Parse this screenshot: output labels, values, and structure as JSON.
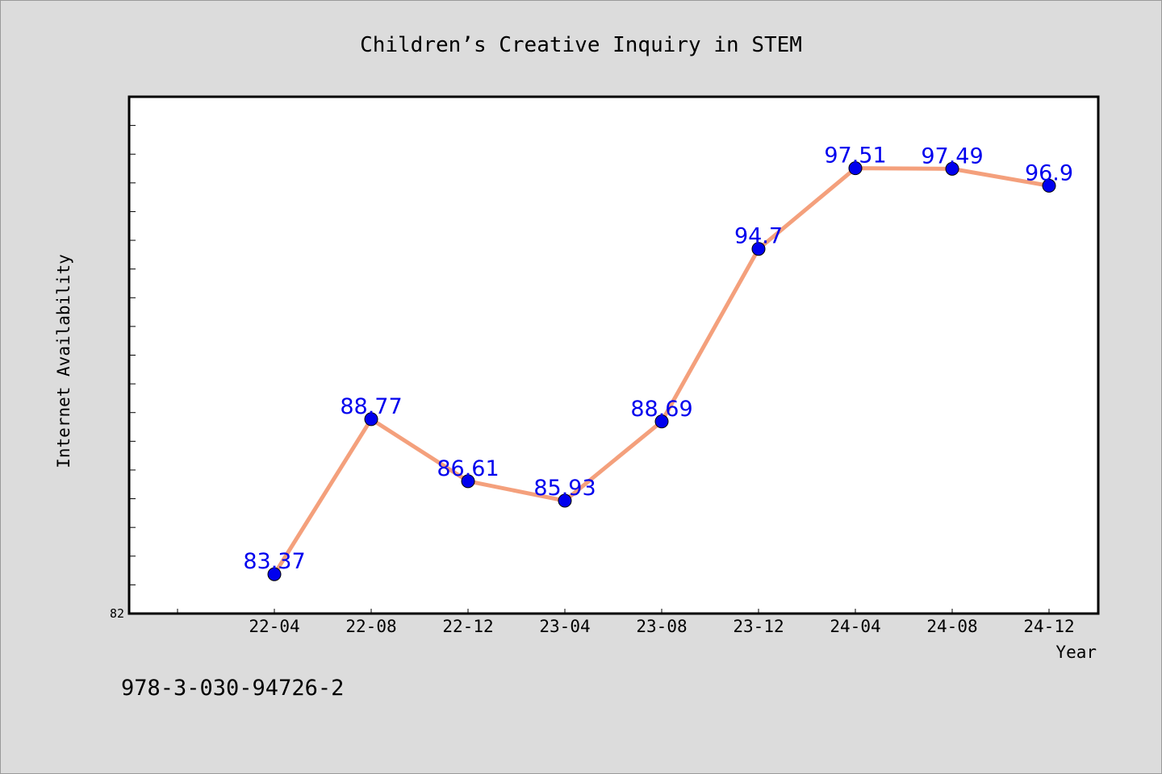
{
  "chart_data": {
    "type": "line",
    "title": "Children’s Creative Inquiry in STEM",
    "xlabel": "Year",
    "ylabel": "Internet Availability",
    "categories": [
      "22-04",
      "22-08",
      "22-12",
      "23-04",
      "23-08",
      "23-12",
      "24-04",
      "24-08",
      "24-12"
    ],
    "series": [
      {
        "values": [
          83.37,
          88.77,
          86.61,
          85.93,
          88.69,
          94.7,
          97.51,
          97.49,
          96.9
        ]
      }
    ],
    "data_labels": [
      "83.37",
      "88.77",
      "86.61",
      "85.93",
      "88.69",
      "94.7",
      "97.51",
      "97.49",
      "96.9"
    ],
    "y_tick_labels": [
      "82"
    ],
    "ylim": [
      82,
      100
    ],
    "grid": false,
    "line_color": "#f4a07c",
    "marker_color": "#0000ee",
    "label_color": "#0000ee",
    "background_color": "#dcdcdc",
    "plot_background_color": "#ffffff"
  },
  "footer": {
    "isbn": "978-3-030-94726-2"
  }
}
